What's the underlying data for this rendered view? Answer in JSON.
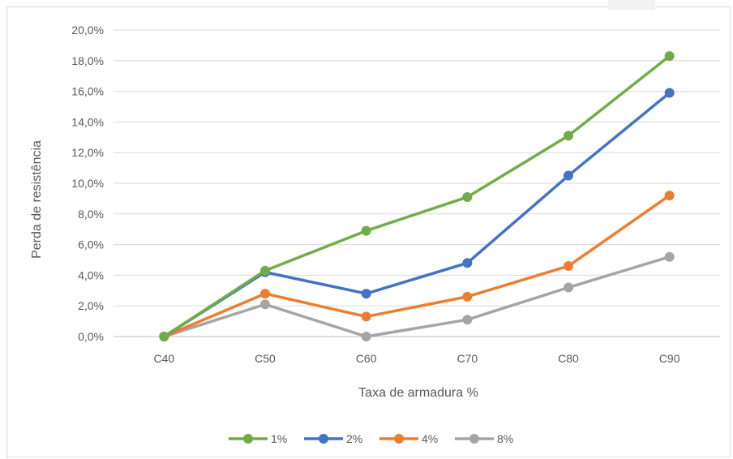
{
  "chart_data": {
    "type": "line",
    "title": "",
    "xlabel": "Taxa de armadura %",
    "ylabel": "Perda de resistência",
    "categories": [
      "C40",
      "C50",
      "C60",
      "C70",
      "C80",
      "C90"
    ],
    "ylim": [
      0,
      0.2
    ],
    "yticks": [
      "0,0%",
      "2,0%",
      "4,0%",
      "6,0%",
      "8,0%",
      "10,0%",
      "12,0%",
      "14,0%",
      "16,0%",
      "18,0%",
      "20,0%"
    ],
    "grid": true,
    "legend_position": "bottom",
    "series": [
      {
        "name": "1%",
        "color": "#70ad47",
        "values": [
          0.0,
          0.043,
          0.069,
          0.091,
          0.131,
          0.183
        ]
      },
      {
        "name": "2%",
        "color": "#4472c4",
        "values": [
          0.0,
          0.042,
          0.028,
          0.048,
          0.105,
          0.159
        ]
      },
      {
        "name": "4%",
        "color": "#ed7d31",
        "values": [
          0.0,
          0.028,
          0.013,
          0.026,
          0.046,
          0.092
        ]
      },
      {
        "name": "8%",
        "color": "#a5a5a5",
        "values": [
          0.0,
          0.021,
          0.0,
          0.011,
          0.032,
          0.052
        ]
      }
    ]
  }
}
